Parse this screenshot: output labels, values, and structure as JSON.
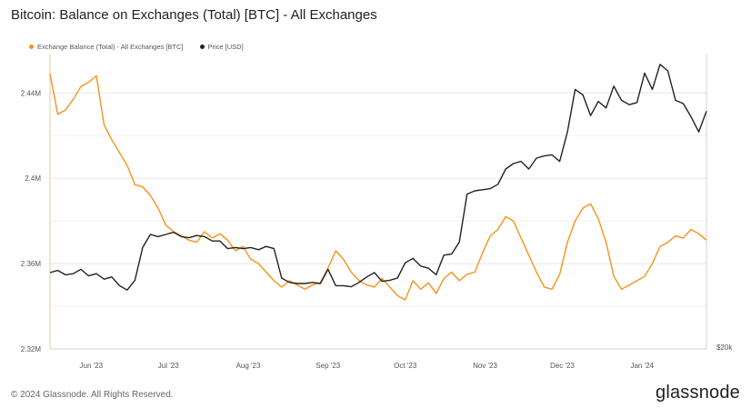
{
  "title": "Bitcoin: Balance on Exchanges (Total) [BTC] - All Exchanges",
  "footer": "© 2024 Glassnode. All Rights Reserved.",
  "brand": "glassnode",
  "colors": {
    "balance": "#f7931a",
    "price": "#222222",
    "grid": "#e6e6e6",
    "axis_text": "#555555"
  },
  "chart_data": {
    "type": "line",
    "title": "Bitcoin: Balance on Exchanges (Total) [BTC] - All Exchanges",
    "x_ticks": [
      "Jun '23",
      "Jul '23",
      "Aug '23",
      "Sep '23",
      "Oct '23",
      "Nov '23",
      "Dec '23",
      "Jan '24"
    ],
    "y_left_ticks": [
      "2.32M",
      "2.36M",
      "2.4M",
      "2.44M"
    ],
    "y_left_tick_values": [
      2320000,
      2360000,
      2400000,
      2440000
    ],
    "y_right_ticks": [
      "$20k"
    ],
    "ylim_left": [
      2320000,
      2458000
    ],
    "ylim_right": [
      20000,
      47000
    ],
    "grid": true,
    "legend_position": "top-left",
    "x": [
      "2023-05-16",
      "2023-05-19",
      "2023-05-22",
      "2023-05-25",
      "2023-05-28",
      "2023-05-31",
      "2023-06-03",
      "2023-06-06",
      "2023-06-09",
      "2023-06-12",
      "2023-06-15",
      "2023-06-18",
      "2023-06-21",
      "2023-06-24",
      "2023-06-27",
      "2023-06-30",
      "2023-07-03",
      "2023-07-06",
      "2023-07-09",
      "2023-07-12",
      "2023-07-15",
      "2023-07-18",
      "2023-07-21",
      "2023-07-24",
      "2023-07-27",
      "2023-07-30",
      "2023-08-02",
      "2023-08-05",
      "2023-08-08",
      "2023-08-11",
      "2023-08-14",
      "2023-08-17",
      "2023-08-20",
      "2023-08-23",
      "2023-08-26",
      "2023-08-29",
      "2023-09-01",
      "2023-09-04",
      "2023-09-07",
      "2023-09-10",
      "2023-09-13",
      "2023-09-16",
      "2023-09-19",
      "2023-09-22",
      "2023-09-25",
      "2023-09-28",
      "2023-10-01",
      "2023-10-04",
      "2023-10-07",
      "2023-10-10",
      "2023-10-13",
      "2023-10-16",
      "2023-10-19",
      "2023-10-22",
      "2023-10-25",
      "2023-10-28",
      "2023-10-31",
      "2023-11-03",
      "2023-11-06",
      "2023-11-09",
      "2023-11-12",
      "2023-11-15",
      "2023-11-18",
      "2023-11-21",
      "2023-11-24",
      "2023-11-27",
      "2023-11-30",
      "2023-12-03",
      "2023-12-06",
      "2023-12-09",
      "2023-12-12",
      "2023-12-15",
      "2023-12-18",
      "2023-12-21",
      "2023-12-24",
      "2023-12-27",
      "2023-12-30",
      "2024-01-02",
      "2024-01-05",
      "2024-01-08",
      "2024-01-11",
      "2024-01-14",
      "2024-01-17",
      "2024-01-20",
      "2024-01-23",
      "2024-01-26"
    ],
    "series": [
      {
        "name": "Exchange Balance (Total) - All Exchanges [BTC]",
        "axis": "left",
        "values": [
          2449000,
          2430000,
          2432000,
          2437000,
          2443000,
          2445000,
          2448000,
          2425000,
          2418000,
          2412000,
          2406000,
          2397000,
          2396000,
          2392000,
          2386000,
          2378000,
          2375000,
          2373000,
          2371000,
          2370000,
          2375000,
          2372000,
          2374000,
          2371000,
          2366000,
          2368000,
          2362000,
          2360000,
          2356000,
          2352000,
          2349000,
          2352000,
          2350000,
          2348000,
          2350000,
          2351000,
          2358000,
          2366000,
          2362000,
          2356000,
          2352000,
          2350000,
          2349000,
          2353000,
          2349000,
          2345000,
          2343000,
          2352000,
          2348000,
          2351000,
          2346000,
          2353000,
          2356000,
          2352000,
          2355000,
          2356000,
          2365000,
          2373000,
          2376000,
          2382000,
          2380000,
          2372000,
          2364000,
          2356000,
          2349000,
          2348000,
          2355000,
          2370000,
          2380000,
          2386000,
          2388000,
          2381000,
          2370000,
          2354000,
          2348000,
          2350000,
          2352000,
          2354000,
          2360000,
          2368000,
          2370000,
          2373000,
          2372000,
          2376000,
          2374000,
          2371000
        ]
      },
      {
        "name": "Price [USD]",
        "axis": "right",
        "values": [
          27000,
          27200,
          26800,
          26900,
          27300,
          26700,
          26900,
          26400,
          26600,
          25800,
          25400,
          26300,
          29300,
          30500,
          30300,
          30500,
          30700,
          30300,
          30200,
          30400,
          30300,
          29900,
          29900,
          29200,
          29300,
          29200,
          29300,
          29100,
          29400,
          29200,
          26500,
          26100,
          26000,
          26000,
          26100,
          26000,
          27300,
          25800,
          25800,
          25700,
          26100,
          26600,
          27000,
          26200,
          26300,
          26500,
          27900,
          28300,
          27600,
          27400,
          26800,
          28600,
          28700,
          29800,
          34200,
          34500,
          34600,
          34700,
          35100,
          36500,
          37000,
          37200,
          36500,
          37500,
          37700,
          37800,
          37200,
          39900,
          43800,
          43300,
          41400,
          42700,
          42100,
          44100,
          42800,
          42400,
          42600,
          45300,
          43800,
          46100,
          45500,
          42800,
          42500,
          41300,
          39900,
          41800
        ]
      }
    ]
  }
}
